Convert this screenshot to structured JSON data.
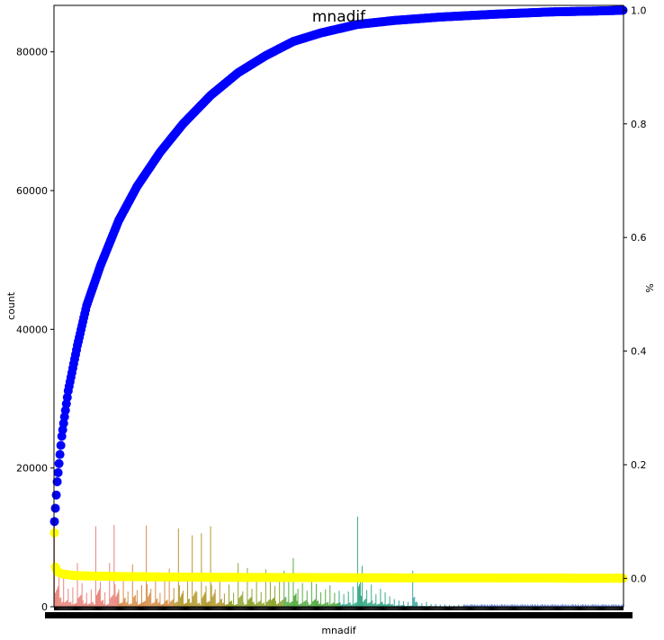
{
  "chart_data": {
    "type": "bar",
    "title": "mnadif",
    "xlabel": "mnadif",
    "ylabel": "count",
    "y2label": "%",
    "ylim": [
      0,
      86700
    ],
    "y2lim": [
      -0.05,
      1.0085
    ],
    "yticks": [
      0,
      20000,
      40000,
      60000,
      80000
    ],
    "y2ticks": [
      0.0,
      0.2,
      0.4,
      0.6,
      0.8,
      1.0
    ],
    "grid": false,
    "n_categories": 620,
    "bar_palette": [
      "#e8867c",
      "#d68f4a",
      "#b39a2e",
      "#8fa52f",
      "#58ad45",
      "#3aab8a",
      "#39a6a4",
      "#3c9fc4",
      "#6b8ee0",
      "#a37ee6",
      "#d071d8",
      "#e275b0"
    ],
    "bar_groups": [
      {
        "color": "#e8867c",
        "values": [
          11800,
          5000,
          4200,
          2600,
          2800,
          6300,
          3400,
          2000,
          2500,
          11600,
          3600,
          2100,
          6300,
          11800
        ]
      },
      {
        "color": "#d68f4a",
        "values": [
          2500,
          4800,
          2200,
          6100,
          2400,
          3100,
          11700,
          2600,
          4400,
          2000,
          3700,
          5500
        ]
      },
      {
        "color": "#b39a2e",
        "values": [
          2700,
          11300,
          2300,
          4300,
          10300,
          2100,
          10600,
          3000,
          11600,
          2500,
          4200,
          1900
        ]
      },
      {
        "color": "#8fa52f",
        "values": [
          3200,
          2000,
          6300,
          2200,
          5600,
          2600,
          3900,
          2100,
          5400,
          4800,
          3000,
          4200
        ]
      },
      {
        "color": "#58ad45",
        "values": [
          5200,
          3600,
          7000,
          2600,
          3400,
          2300,
          4400,
          3300,
          2100,
          2500,
          3100,
          2000
        ]
      },
      {
        "color": "#3aab8a",
        "values": [
          2300,
          1800,
          2200,
          2900,
          13000,
          5900,
          2400,
          3200,
          1800,
          2600,
          2100,
          1500
        ]
      },
      {
        "color": "#39a6a4",
        "values": [
          1100,
          900,
          800,
          700,
          5200,
          600,
          500,
          700,
          400
        ]
      },
      {
        "color": "#3c9fc4",
        "values": [
          400,
          300,
          350,
          250,
          200,
          300
        ]
      }
    ],
    "tail_counts_approx": 300,
    "series": [
      {
        "name": "",
        "kind": "cumulative-percent",
        "color": "#0000ff",
        "marker": "circle",
        "points": [
          [
            0,
            0.1
          ],
          [
            3,
            0.17
          ],
          [
            8,
            0.25
          ],
          [
            15,
            0.33
          ],
          [
            25,
            0.41
          ],
          [
            35,
            0.48
          ],
          [
            50,
            0.55
          ],
          [
            70,
            0.63
          ],
          [
            90,
            0.69
          ],
          [
            115,
            0.75
          ],
          [
            140,
            0.8
          ],
          [
            170,
            0.85
          ],
          [
            200,
            0.89
          ],
          [
            230,
            0.92
          ],
          [
            260,
            0.945
          ],
          [
            290,
            0.96
          ],
          [
            330,
            0.975
          ],
          [
            370,
            0.982
          ],
          [
            420,
            0.988
          ],
          [
            480,
            0.993
          ],
          [
            540,
            0.997
          ],
          [
            600,
            0.999
          ],
          [
            619,
            1.0
          ]
        ]
      },
      {
        "name": "",
        "kind": "percent",
        "color": "#ffff00",
        "marker": "circle",
        "points": [
          [
            0,
            0.08
          ],
          [
            1,
            0.02
          ],
          [
            3,
            0.012
          ],
          [
            8,
            0.008
          ],
          [
            20,
            0.005
          ],
          [
            40,
            0.004
          ],
          [
            80,
            0.003
          ],
          [
            150,
            0.002
          ],
          [
            300,
            0.0012
          ],
          [
            450,
            0.0006
          ],
          [
            619,
            0.0002
          ]
        ]
      }
    ]
  }
}
